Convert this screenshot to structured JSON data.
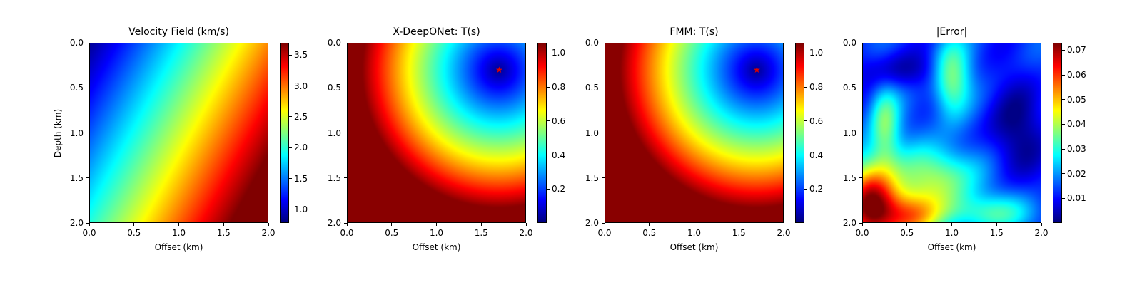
{
  "chart_data": [
    {
      "type": "heatmap",
      "title": "Velocity Field (km/s)",
      "xlabel": "Offset (km)",
      "ylabel": "Depth (km)",
      "xlim": [
        0.0,
        2.0
      ],
      "ylim": [
        2.0,
        0.0
      ],
      "xticks": [
        "0.0",
        "0.5",
        "1.0",
        "1.5",
        "2.0"
      ],
      "yticks": [
        "0.0",
        "0.5",
        "1.0",
        "1.5",
        "2.0"
      ],
      "colormap": "jet",
      "colorbar": {
        "min": 0.78,
        "max": 3.7,
        "ticks": [
          1.0,
          1.5,
          2.0,
          2.5,
          3.0,
          3.5
        ],
        "tick_labels": [
          "1.0",
          "1.5",
          "2.0",
          "2.5",
          "3.0",
          "3.5"
        ]
      },
      "field": "velocity"
    },
    {
      "type": "heatmap",
      "title": "X-DeepONet: T(s)",
      "xlabel": "Offset (km)",
      "ylabel": "",
      "xlim": [
        0.0,
        2.0
      ],
      "ylim": [
        2.0,
        0.0
      ],
      "xticks": [
        "0.0",
        "0.5",
        "1.0",
        "1.5",
        "2.0"
      ],
      "yticks": [
        "0.0",
        "0.5",
        "1.0",
        "1.5",
        "2.0"
      ],
      "colormap": "jet",
      "colorbar": {
        "min": 0.0,
        "max": 1.06,
        "ticks": [
          0.2,
          0.4,
          0.6,
          0.8,
          1.0
        ],
        "tick_labels": [
          "0.2",
          "0.4",
          "0.6",
          "0.8",
          "1.0"
        ]
      },
      "source": {
        "x": 1.7,
        "z": 0.3,
        "marker": "star",
        "color": "#e00000"
      },
      "field": "traveltime"
    },
    {
      "type": "heatmap",
      "title": "FMM: T(s)",
      "xlabel": "Offset (km)",
      "ylabel": "",
      "xlim": [
        0.0,
        2.0
      ],
      "ylim": [
        2.0,
        0.0
      ],
      "xticks": [
        "0.0",
        "0.5",
        "1.0",
        "1.5",
        "2.0"
      ],
      "yticks": [
        "0.0",
        "0.5",
        "1.0",
        "1.5",
        "2.0"
      ],
      "colormap": "jet",
      "colorbar": {
        "min": 0.0,
        "max": 1.06,
        "ticks": [
          0.2,
          0.4,
          0.6,
          0.8,
          1.0
        ],
        "tick_labels": [
          "0.2",
          "0.4",
          "0.6",
          "0.8",
          "1.0"
        ]
      },
      "source": {
        "x": 1.7,
        "z": 0.3,
        "marker": "star",
        "color": "#e00000"
      },
      "field": "traveltime"
    },
    {
      "type": "heatmap",
      "title": "|Error|",
      "xlabel": "Offset (km)",
      "ylabel": "",
      "xlim": [
        0.0,
        2.0
      ],
      "ylim": [
        2.0,
        0.0
      ],
      "xticks": [
        "0.0",
        "0.5",
        "1.0",
        "1.5",
        "2.0"
      ],
      "yticks": [
        "0.0",
        "0.5",
        "1.0",
        "1.5",
        "2.0"
      ],
      "colormap": "jet",
      "colorbar": {
        "min": 0.0,
        "max": 0.073,
        "ticks": [
          0.01,
          0.02,
          0.03,
          0.04,
          0.05,
          0.06,
          0.07
        ],
        "tick_labels": [
          "0.01",
          "0.02",
          "0.03",
          "0.04",
          "0.05",
          "0.06",
          "0.07"
        ]
      },
      "field": "error"
    }
  ]
}
